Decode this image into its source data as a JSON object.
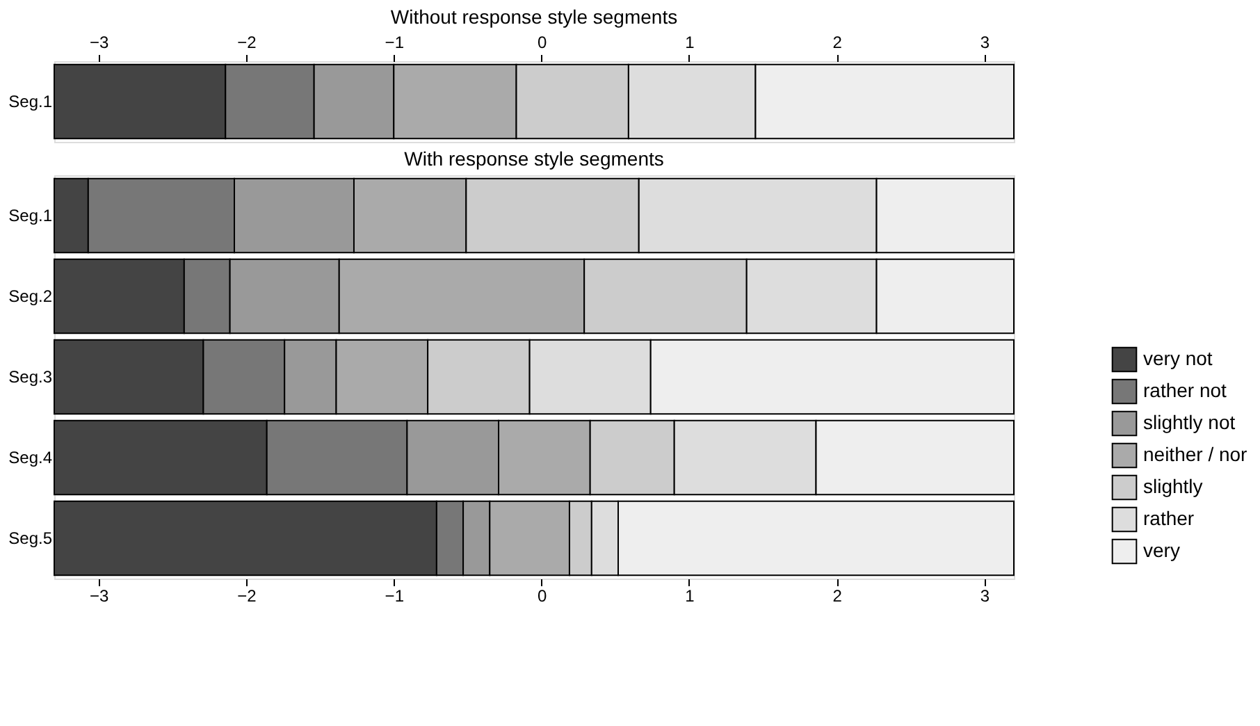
{
  "chart_data": [
    {
      "type": "bar",
      "title": "Without response style segments",
      "orientation": "horizontal",
      "legend": "right",
      "categories": [
        "Seg.1"
      ],
      "xlim": [
        -3.3,
        3.2
      ],
      "xticks": [
        -3,
        -2,
        -1,
        0,
        1,
        2,
        3
      ],
      "grid": false,
      "series": [
        {
          "name": "very not",
          "color": "#444444",
          "base": [
            -3.3
          ],
          "values": [
            1.16
          ]
        },
        {
          "name": "rather not",
          "color": "#777777",
          "base": [
            -2.14
          ],
          "values": [
            0.6
          ]
        },
        {
          "name": "slightly not",
          "color": "#999999",
          "base": [
            -1.54
          ],
          "values": [
            0.54
          ]
        },
        {
          "name": "neither / nor",
          "color": "#aaaaaa",
          "base": [
            -1.0
          ],
          "values": [
            0.83
          ]
        },
        {
          "name": "slightly",
          "color": "#cccccc",
          "base": [
            -0.17
          ],
          "values": [
            0.76
          ]
        },
        {
          "name": "rather",
          "color": "#dddddd",
          "base": [
            0.59
          ],
          "values": [
            0.86
          ]
        },
        {
          "name": "very",
          "color": "#eeeeee",
          "base": [
            1.45
          ],
          "values": [
            1.75
          ]
        }
      ]
    },
    {
      "type": "bar",
      "title": "With response style segments",
      "orientation": "horizontal",
      "legend": "right",
      "categories": [
        "Seg.1",
        "Seg.2",
        "Seg.3",
        "Seg.4",
        "Seg.5"
      ],
      "xlim": [
        -3.3,
        3.2
      ],
      "xticks": [
        -3,
        -2,
        -1,
        0,
        1,
        2,
        3
      ],
      "grid": false,
      "series": [
        {
          "name": "very not",
          "color": "#444444",
          "base": [
            -3.3,
            -3.3,
            -3.3,
            -3.3,
            -3.3
          ],
          "values": [
            0.23,
            0.88,
            1.01,
            1.44,
            2.59
          ]
        },
        {
          "name": "rather not",
          "color": "#777777",
          "base": [
            -3.07,
            -2.42,
            -2.29,
            -1.86,
            -0.71
          ],
          "values": [
            0.99,
            0.31,
            0.55,
            0.95,
            0.18
          ]
        },
        {
          "name": "slightly not",
          "color": "#999999",
          "base": [
            -2.08,
            -2.11,
            -1.74,
            -0.91,
            -0.53
          ],
          "values": [
            0.81,
            0.74,
            0.35,
            0.62,
            0.18
          ]
        },
        {
          "name": "neither / nor",
          "color": "#aaaaaa",
          "base": [
            -1.27,
            -1.37,
            -1.39,
            -0.29,
            -0.35
          ],
          "values": [
            0.76,
            1.66,
            0.62,
            0.62,
            0.54
          ]
        },
        {
          "name": "slightly",
          "color": "#cccccc",
          "base": [
            -0.51,
            0.29,
            -0.77,
            0.33,
            0.19
          ],
          "values": [
            1.17,
            1.1,
            0.69,
            0.57,
            0.15
          ]
        },
        {
          "name": "rather",
          "color": "#dddddd",
          "base": [
            0.66,
            1.39,
            -0.08,
            0.9,
            0.34
          ],
          "values": [
            1.61,
            0.88,
            0.82,
            0.96,
            0.18
          ]
        },
        {
          "name": "very",
          "color": "#eeeeee",
          "base": [
            2.27,
            2.27,
            0.74,
            1.86,
            0.52
          ],
          "values": [
            0.93,
            0.93,
            2.46,
            1.34,
            2.68
          ]
        }
      ]
    }
  ]
}
